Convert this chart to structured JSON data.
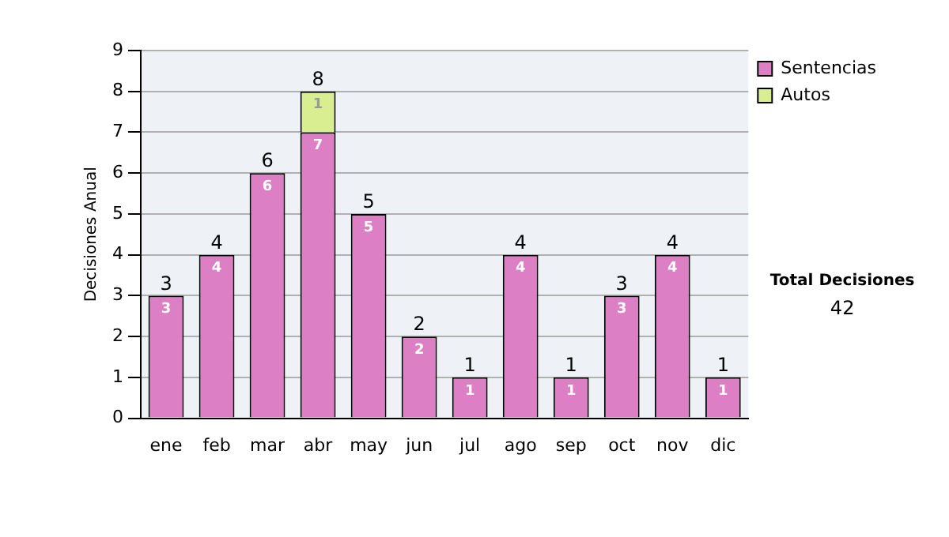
{
  "chart_data": {
    "type": "bar",
    "ylabel": "Decisiones Anual",
    "categories": [
      "ene",
      "feb",
      "mar",
      "abr",
      "may",
      "jun",
      "jul",
      "ago",
      "sep",
      "oct",
      "nov",
      "dic"
    ],
    "series": [
      {
        "name": "Sentencias",
        "color": "#dc7fc4",
        "values": [
          3,
          4,
          6,
          7,
          5,
          2,
          1,
          4,
          1,
          3,
          4,
          1
        ]
      },
      {
        "name": "Autos",
        "color": "#d8ee90",
        "values": [
          null,
          null,
          null,
          1,
          null,
          null,
          null,
          null,
          null,
          null,
          null,
          null
        ]
      }
    ],
    "stacked": true,
    "ylim": [
      0,
      9
    ],
    "yticks": [
      0,
      1,
      2,
      3,
      4,
      5,
      6,
      7,
      8,
      9
    ],
    "grid": "y",
    "legend": "right",
    "data_labels": true,
    "totals": [
      "3",
      "4",
      "6",
      "8",
      "5",
      "2",
      "1",
      "4",
      "1",
      "3",
      "4",
      "1"
    ],
    "annotations": [
      "Total Decisiones",
      "42"
    ]
  }
}
